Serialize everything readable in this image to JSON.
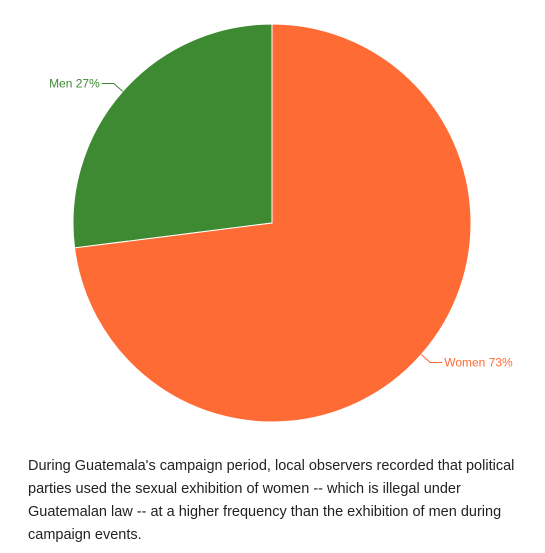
{
  "chart_data": {
    "type": "pie",
    "categories": [
      "Men",
      "Women"
    ],
    "values": [
      27,
      73
    ],
    "labels": [
      "Men 27%",
      "Women 73%"
    ],
    "colors": [
      "#3d8a32",
      "#ff6b35"
    ]
  },
  "caption": "During Guatemala's campaign period, local observers recorded that political parties used the sexual exhibition of women -- which is illegal under Guatemalan law -- at a higher frequency than the exhibition of men during campaign events."
}
